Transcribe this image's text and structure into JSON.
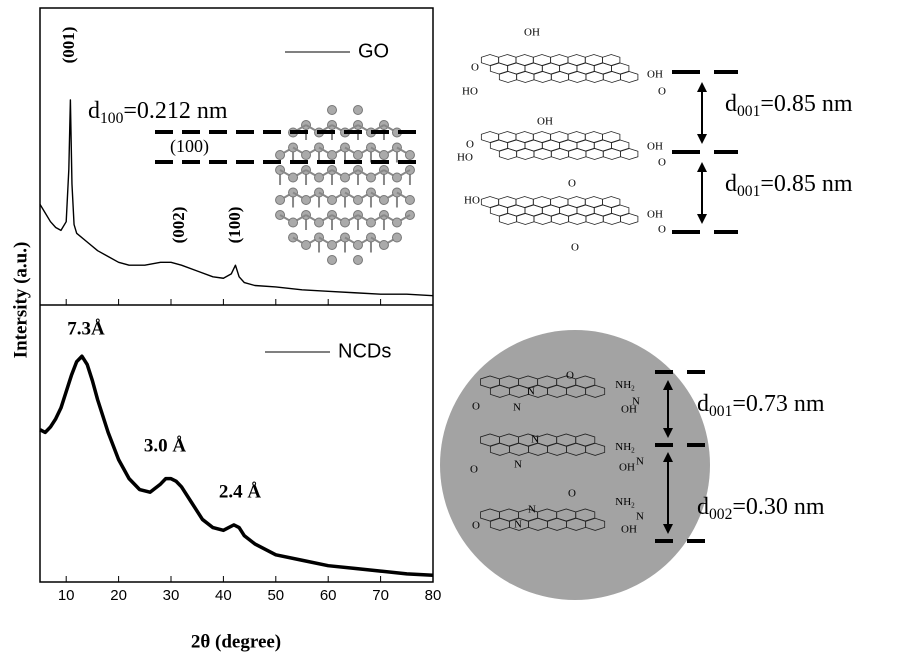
{
  "chart_data": [
    {
      "type": "line",
      "ylabel": "Intersity (a.u.)",
      "legend": "upper right",
      "xlim": [
        5,
        80
      ],
      "ylim": [
        0,
        100
      ],
      "peak_labels": [
        "(001)",
        "(002)",
        "(100)"
      ],
      "series": [
        {
          "name": "GO",
          "color": "#000000",
          "x": [
            5,
            6,
            7,
            8,
            9,
            10,
            10.5,
            10.8,
            11.1,
            11.5,
            12,
            14,
            16,
            18,
            20,
            22,
            25,
            28,
            30,
            32,
            35,
            38,
            40,
            41.5,
            42.3,
            43,
            44,
            46,
            50,
            55,
            60,
            65,
            70,
            75,
            80
          ],
          "values": [
            33,
            30,
            27,
            25,
            24,
            27,
            45,
            69,
            40,
            26,
            23,
            20,
            17,
            15,
            13,
            12,
            12,
            13,
            13,
            12,
            10,
            8,
            7.5,
            9,
            12,
            8,
            6,
            5,
            4.5,
            3.5,
            3,
            2.5,
            2,
            2,
            1.5
          ]
        }
      ]
    },
    {
      "type": "line",
      "xlabel": "2θ (degree)",
      "legend": "upper right",
      "xlim": [
        5,
        80
      ],
      "ylim": [
        0,
        100
      ],
      "xticks": [
        10,
        20,
        30,
        40,
        50,
        60,
        70,
        80
      ],
      "peak_labels": [
        "7.3Å",
        "3.0 Å",
        "2.4 Å"
      ],
      "series": [
        {
          "name": "NCDs",
          "color": "#000000",
          "x": [
            5,
            6,
            7,
            8,
            9,
            10,
            11,
            12,
            13,
            14,
            15,
            16,
            18,
            20,
            22,
            24,
            26,
            28,
            29,
            30,
            31,
            32,
            34,
            36,
            38,
            40,
            42,
            43,
            44,
            46,
            50,
            55,
            60,
            65,
            70,
            75,
            80
          ],
          "values": [
            56,
            55,
            57,
            60,
            64,
            70,
            76,
            81,
            83,
            80,
            74,
            67,
            55,
            45,
            38,
            34,
            33,
            36,
            38,
            38,
            37,
            35,
            29,
            23,
            20,
            19,
            21,
            20,
            17,
            14,
            10,
            8,
            6,
            5,
            4,
            3,
            2.5
          ]
        }
      ]
    }
  ],
  "schematic": {
    "lattice_label": "(100)",
    "d100": {
      "main": "d",
      "sub": "100",
      "rest": "=0.212 nm"
    },
    "go_spacings": [
      {
        "main": "d",
        "sub": "001",
        "rest": "=0.85 nm"
      },
      {
        "main": "d",
        "sub": "001",
        "rest": "=0.85 nm"
      }
    ],
    "go_groups": [
      [
        "OH",
        "O",
        "HO",
        "OH",
        "O"
      ],
      [
        "OH",
        "O",
        "HO",
        "OH",
        "O"
      ],
      [
        "HO",
        "O",
        "OH",
        "O",
        "O"
      ]
    ],
    "ncd_spacings": [
      {
        "main": "d",
        "sub": "001",
        "rest": "=0.73 nm"
      },
      {
        "main": "d",
        "sub": "002",
        "rest": "=0.30 nm"
      }
    ],
    "ncd_groups": [
      [
        "O",
        {
          "main": "NH",
          "sub": "2"
        },
        "N",
        "N",
        "N",
        "O",
        "OH"
      ],
      [
        "N",
        {
          "main": "NH",
          "sub": "2"
        },
        "N",
        "N",
        "O",
        "OH"
      ],
      [
        "O",
        {
          "main": "NH",
          "sub": "2"
        },
        "N",
        "N",
        "N",
        "O",
        "OH"
      ]
    ]
  }
}
